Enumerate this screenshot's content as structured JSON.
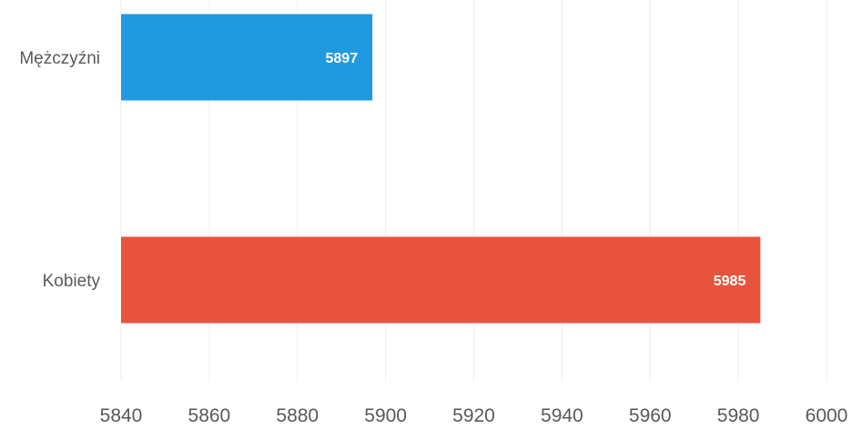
{
  "chart_data": {
    "type": "bar",
    "orientation": "horizontal",
    "categories": [
      "Mężczyźni",
      "Kobiety"
    ],
    "values": [
      5897,
      5985
    ],
    "data_labels": [
      "5897",
      "5985"
    ],
    "colors": [
      "#1f9ae0",
      "#e8533e"
    ],
    "xlim": [
      5840,
      6000
    ],
    "xticks": [
      5840,
      5860,
      5880,
      5900,
      5920,
      5940,
      5960,
      5980,
      6000
    ],
    "xtick_labels": [
      "5840",
      "5860",
      "5880",
      "5900",
      "5920",
      "5940",
      "5960",
      "5980",
      "6000"
    ],
    "grid": true,
    "legend": "none"
  }
}
